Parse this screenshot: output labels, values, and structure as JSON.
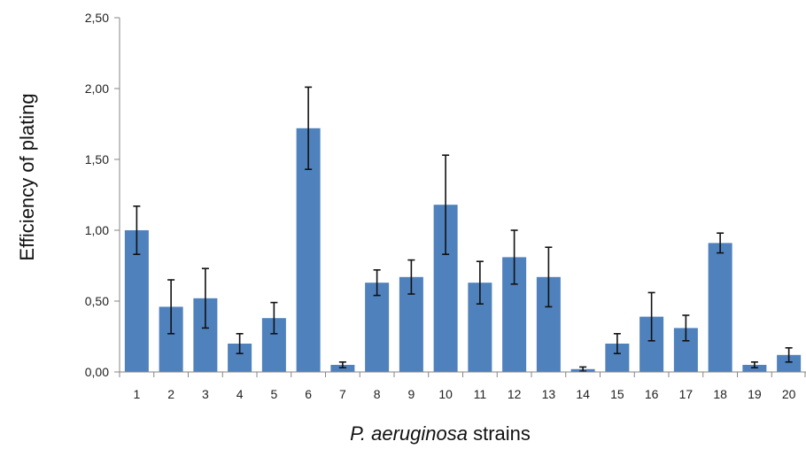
{
  "chart_data": {
    "type": "bar",
    "categories": [
      "1",
      "2",
      "3",
      "4",
      "5",
      "6",
      "7",
      "8",
      "9",
      "10",
      "11",
      "12",
      "13",
      "14",
      "15",
      "16",
      "17",
      "18",
      "19",
      "20"
    ],
    "values": [
      1.0,
      0.46,
      0.52,
      0.2,
      0.38,
      1.72,
      0.05,
      0.63,
      0.67,
      1.18,
      0.63,
      0.81,
      0.67,
      0.02,
      0.2,
      0.39,
      0.31,
      0.91,
      0.05,
      0.12
    ],
    "error": [
      0.17,
      0.19,
      0.21,
      0.07,
      0.11,
      0.29,
      0.02,
      0.09,
      0.12,
      0.35,
      0.15,
      0.19,
      0.21,
      0.015,
      0.07,
      0.17,
      0.09,
      0.07,
      0.02,
      0.05
    ],
    "ylim": [
      0,
      2.5
    ],
    "yticks": [
      "0,00",
      "0,50",
      "1,00",
      "1,50",
      "2,00",
      "2,50"
    ],
    "ylabel": "Efficiency of plating",
    "xlabel_italic": "P. aeruginosa",
    "xlabel_rest": " strains",
    "bar_color": "#4f81bd",
    "grid": false
  }
}
